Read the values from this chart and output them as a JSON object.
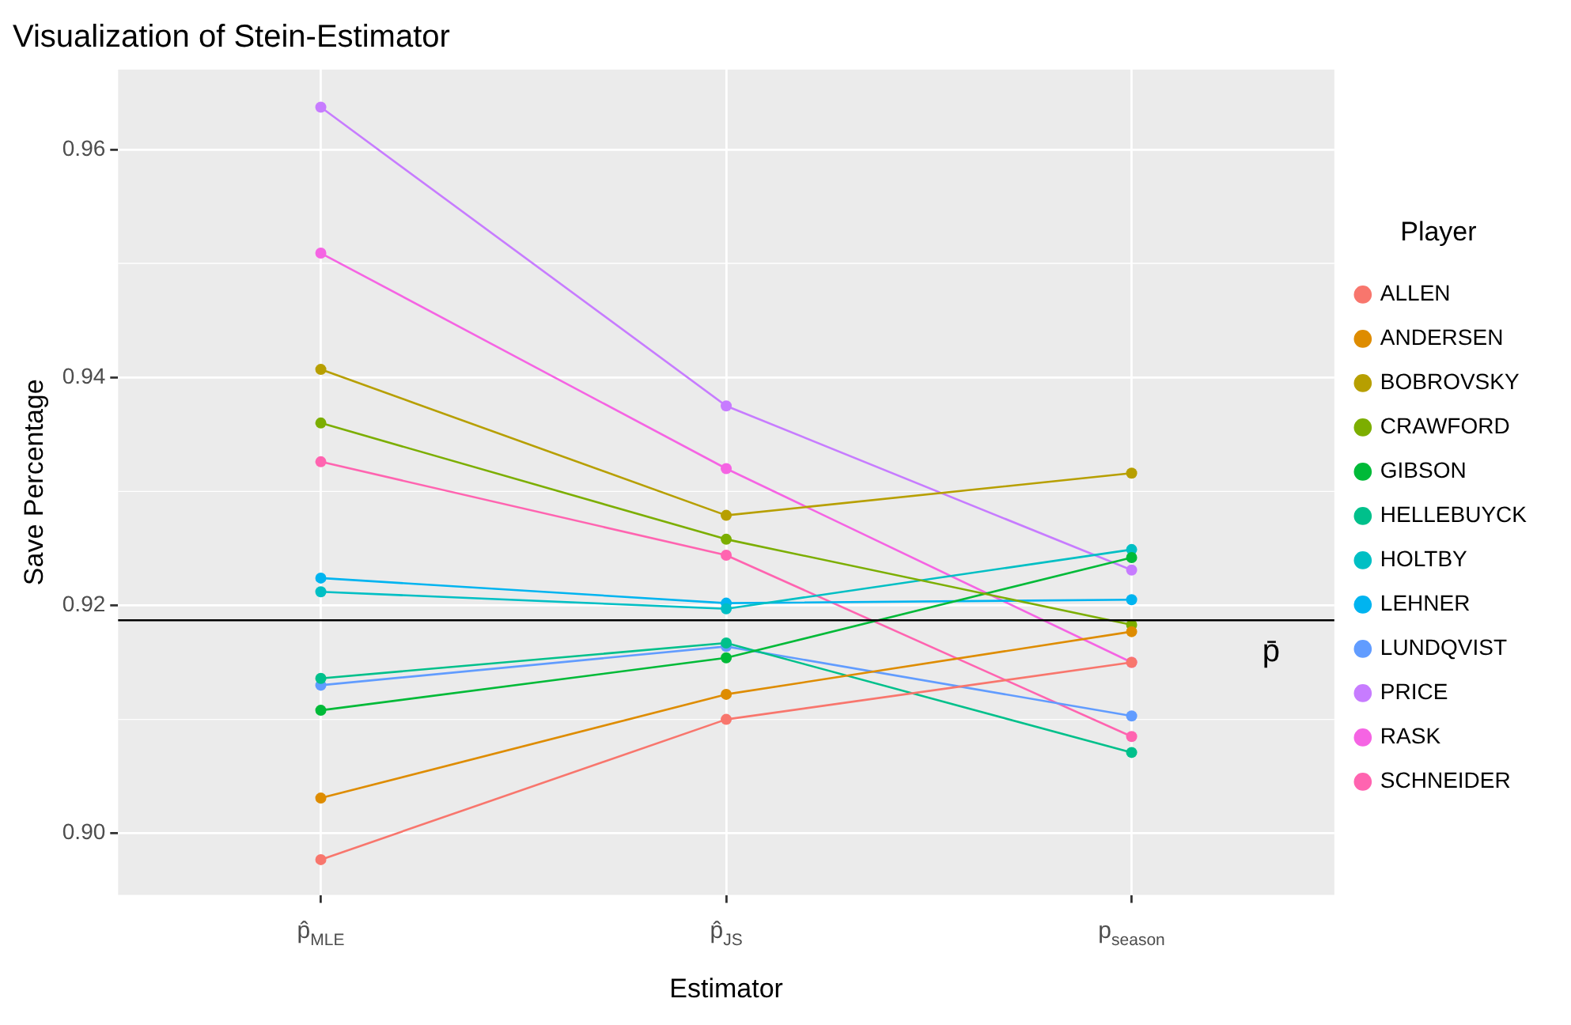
{
  "chart_data": {
    "type": "line",
    "title": "Visualization of Stein-Estimator",
    "xlabel": "Estimator",
    "ylabel": "Save Percentage",
    "legend_title": "Player",
    "categories": [
      "p̂$_{MLE}$",
      "p̂$_{JS}$",
      "p$_{season}$"
    ],
    "series": [
      {
        "name": "ALLEN",
        "color": "#f8766d",
        "values": [
          0.8977,
          0.91,
          0.915
        ]
      },
      {
        "name": "ANDERSEN",
        "color": "#de8c00",
        "values": [
          0.9031,
          0.9122,
          0.9177
        ]
      },
      {
        "name": "BOBROVSKY",
        "color": "#b79f00",
        "values": [
          0.9407,
          0.9279,
          0.9316
        ]
      },
      {
        "name": "CRAWFORD",
        "color": "#7cae00",
        "values": [
          0.936,
          0.9258,
          0.9183
        ]
      },
      {
        "name": "GIBSON",
        "color": "#00ba38",
        "values": [
          0.9108,
          0.9154,
          0.9242
        ]
      },
      {
        "name": "HELLEBUYCK",
        "color": "#00c08b",
        "values": [
          0.9136,
          0.9167,
          0.9071
        ]
      },
      {
        "name": "HOLTBY",
        "color": "#00bfc4",
        "values": [
          0.9212,
          0.9197,
          0.9249
        ]
      },
      {
        "name": "LEHNER",
        "color": "#00b4f0",
        "values": [
          0.9224,
          0.9202,
          0.9205
        ]
      },
      {
        "name": "LUNDQVIST",
        "color": "#619cff",
        "values": [
          0.913,
          0.9164,
          0.9103
        ]
      },
      {
        "name": "PRICE",
        "color": "#c77cff",
        "values": [
          0.9637,
          0.9375,
          0.9231
        ]
      },
      {
        "name": "RASK",
        "color": "#f564e3",
        "values": [
          0.9509,
          0.932,
          0.915
        ]
      },
      {
        "name": "SCHNEIDER",
        "color": "#ff64b0",
        "values": [
          0.9326,
          0.9244,
          0.9085
        ]
      }
    ],
    "ylim": [
      0.8946,
      0.967
    ],
    "yticks": [
      {
        "value": 0.9,
        "label": "0.90"
      },
      {
        "value": 0.92,
        "label": "0.92"
      },
      {
        "value": 0.94,
        "label": "0.94"
      },
      {
        "value": 0.96,
        "label": "0.96"
      }
    ],
    "ref_lines": [
      {
        "axis": "y",
        "value": 0.9187,
        "label": "p̄",
        "color": "#000000"
      }
    ],
    "grid": true,
    "legend": "right",
    "marker": "circle",
    "line_style": "solid"
  }
}
